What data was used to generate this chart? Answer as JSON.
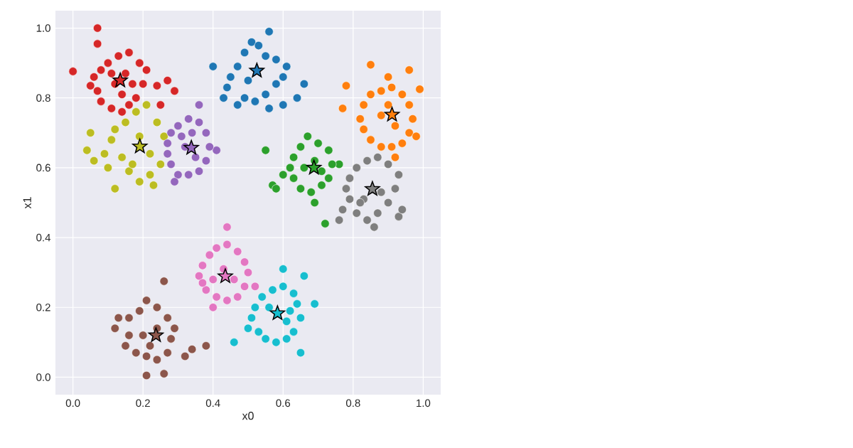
{
  "chart_data": {
    "type": "scatter",
    "xlabel": "x0",
    "ylabel": "x1",
    "xlim": [
      -0.05,
      1.05
    ],
    "ylim": [
      -0.05,
      1.05
    ],
    "xticks": [
      {
        "value": 0,
        "label": "0.0"
      },
      {
        "value": 0.2,
        "label": "0.2"
      },
      {
        "value": 0.4,
        "label": "0.4"
      },
      {
        "value": 0.6,
        "label": "0.6"
      },
      {
        "value": 0.8,
        "label": "0.8"
      },
      {
        "value": 1,
        "label": "1.0"
      }
    ],
    "yticks": [
      {
        "value": 0,
        "label": "0.0"
      },
      {
        "value": 0.2,
        "label": "0.2"
      },
      {
        "value": 0.4,
        "label": "0.4"
      },
      {
        "value": 0.6,
        "label": "0.6"
      },
      {
        "value": 0.8,
        "label": "0.8"
      },
      {
        "value": 1,
        "label": "1.0"
      }
    ],
    "grid": true,
    "marker": "circle",
    "series": [
      {
        "color": "#d62728",
        "x": [
          0.0,
          0.07,
          0.07,
          0.27,
          0.29,
          0.24,
          0.25,
          0.05,
          0.06,
          0.08,
          0.1,
          0.13,
          0.16,
          0.19,
          0.21,
          0.2,
          0.18,
          0.16,
          0.14,
          0.11,
          0.08,
          0.07,
          0.12,
          0.15,
          0.11,
          0.17,
          0.14
        ],
        "values": [
          0.876,
          1.0,
          0.955,
          0.85,
          0.82,
          0.835,
          0.78,
          0.835,
          0.86,
          0.88,
          0.9,
          0.92,
          0.93,
          0.9,
          0.88,
          0.84,
          0.8,
          0.78,
          0.76,
          0.77,
          0.79,
          0.82,
          0.84,
          0.87,
          0.87,
          0.84,
          0.81
        ]
      },
      {
        "color": "#1f77b4",
        "x": [
          0.4,
          0.56,
          0.6,
          0.66,
          0.64,
          0.43,
          0.44,
          0.45,
          0.47,
          0.49,
          0.51,
          0.53,
          0.55,
          0.58,
          0.61,
          0.6,
          0.58,
          0.55,
          0.52,
          0.49,
          0.47,
          0.5,
          0.56
        ],
        "values": [
          0.89,
          0.99,
          0.78,
          0.84,
          0.8,
          0.8,
          0.83,
          0.86,
          0.89,
          0.93,
          0.96,
          0.95,
          0.92,
          0.91,
          0.89,
          0.86,
          0.84,
          0.81,
          0.79,
          0.8,
          0.78,
          0.85,
          0.77
        ]
      },
      {
        "color": "#ff7f0e",
        "x": [
          0.78,
          0.85,
          0.9,
          0.96,
          0.99,
          0.77,
          0.82,
          0.83,
          0.85,
          0.88,
          0.91,
          0.94,
          0.96,
          0.97,
          0.96,
          0.94,
          0.91,
          0.88,
          0.85,
          0.83,
          0.88,
          0.92,
          0.9,
          0.98,
          0.92
        ],
        "values": [
          0.835,
          0.895,
          0.86,
          0.88,
          0.825,
          0.77,
          0.74,
          0.78,
          0.81,
          0.82,
          0.83,
          0.81,
          0.78,
          0.74,
          0.7,
          0.67,
          0.66,
          0.66,
          0.68,
          0.71,
          0.75,
          0.72,
          0.78,
          0.69,
          0.63
        ]
      },
      {
        "color": "#bcbd22",
        "x": [
          0.04,
          0.06,
          0.12,
          0.05,
          0.1,
          0.11,
          0.12,
          0.15,
          0.18,
          0.21,
          0.24,
          0.26,
          0.25,
          0.22,
          0.19,
          0.16,
          0.14,
          0.19,
          0.22,
          0.17,
          0.09,
          0.23
        ],
        "values": [
          0.65,
          0.62,
          0.54,
          0.7,
          0.6,
          0.68,
          0.71,
          0.73,
          0.76,
          0.78,
          0.73,
          0.69,
          0.61,
          0.58,
          0.56,
          0.59,
          0.63,
          0.69,
          0.64,
          0.61,
          0.64,
          0.55
        ]
      },
      {
        "color": "#9467bd",
        "x": [
          0.36,
          0.41,
          0.27,
          0.28,
          0.3,
          0.33,
          0.36,
          0.38,
          0.39,
          0.38,
          0.36,
          0.33,
          0.3,
          0.28,
          0.27,
          0.32,
          0.35,
          0.31,
          0.34,
          0.29
        ],
        "values": [
          0.78,
          0.65,
          0.67,
          0.7,
          0.72,
          0.74,
          0.73,
          0.7,
          0.66,
          0.62,
          0.59,
          0.58,
          0.58,
          0.61,
          0.64,
          0.66,
          0.63,
          0.69,
          0.7,
          0.56
        ]
      },
      {
        "color": "#2ca02c",
        "x": [
          0.55,
          0.72,
          0.76,
          0.57,
          0.58,
          0.62,
          0.63,
          0.65,
          0.67,
          0.7,
          0.73,
          0.74,
          0.73,
          0.71,
          0.68,
          0.65,
          0.63,
          0.69,
          0.66,
          0.71,
          0.6,
          0.69
        ],
        "values": [
          0.65,
          0.44,
          0.61,
          0.55,
          0.54,
          0.6,
          0.63,
          0.66,
          0.69,
          0.67,
          0.65,
          0.61,
          0.57,
          0.55,
          0.53,
          0.54,
          0.57,
          0.62,
          0.6,
          0.59,
          0.58,
          0.5
        ]
      },
      {
        "color": "#7f7f7f",
        "x": [
          0.76,
          0.77,
          0.93,
          0.94,
          0.78,
          0.79,
          0.81,
          0.84,
          0.87,
          0.9,
          0.93,
          0.92,
          0.9,
          0.87,
          0.84,
          0.81,
          0.79,
          0.88,
          0.83,
          0.86,
          0.82
        ],
        "values": [
          0.45,
          0.48,
          0.46,
          0.48,
          0.54,
          0.57,
          0.6,
          0.62,
          0.63,
          0.61,
          0.58,
          0.54,
          0.5,
          0.47,
          0.45,
          0.47,
          0.51,
          0.53,
          0.51,
          0.43,
          0.5
        ]
      },
      {
        "color": "#e377c2",
        "x": [
          0.44,
          0.4,
          0.36,
          0.37,
          0.39,
          0.41,
          0.44,
          0.47,
          0.49,
          0.5,
          0.49,
          0.47,
          0.44,
          0.41,
          0.38,
          0.43,
          0.46,
          0.4,
          0.37,
          0.52
        ],
        "values": [
          0.43,
          0.2,
          0.29,
          0.32,
          0.35,
          0.37,
          0.38,
          0.36,
          0.33,
          0.3,
          0.26,
          0.23,
          0.22,
          0.23,
          0.25,
          0.31,
          0.28,
          0.28,
          0.27,
          0.26
        ]
      },
      {
        "color": "#17becf",
        "x": [
          0.46,
          0.6,
          0.66,
          0.65,
          0.69,
          0.5,
          0.51,
          0.52,
          0.54,
          0.57,
          0.6,
          0.63,
          0.64,
          0.65,
          0.63,
          0.61,
          0.58,
          0.55,
          0.53,
          0.61,
          0.56,
          0.62
        ],
        "values": [
          0.1,
          0.31,
          0.29,
          0.07,
          0.21,
          0.14,
          0.17,
          0.2,
          0.23,
          0.25,
          0.26,
          0.24,
          0.21,
          0.17,
          0.13,
          0.11,
          0.1,
          0.11,
          0.13,
          0.16,
          0.2,
          0.19
        ]
      },
      {
        "color": "#8c564b",
        "x": [
          0.26,
          0.21,
          0.26,
          0.38,
          0.32,
          0.34,
          0.12,
          0.13,
          0.16,
          0.19,
          0.21,
          0.24,
          0.27,
          0.29,
          0.28,
          0.27,
          0.24,
          0.21,
          0.18,
          0.15,
          0.2,
          0.24,
          0.22,
          0.16
        ],
        "values": [
          0.275,
          0.005,
          0.01,
          0.09,
          0.06,
          0.08,
          0.14,
          0.17,
          0.17,
          0.19,
          0.22,
          0.2,
          0.17,
          0.14,
          0.11,
          0.07,
          0.05,
          0.06,
          0.07,
          0.09,
          0.12,
          0.14,
          0.09,
          0.12
        ]
      },
      {
        "marker": "star",
        "colors": [
          "#d62728",
          "#1f77b4",
          "#ff7f0e",
          "#bcbd22",
          "#9467bd",
          "#2ca02c",
          "#7f7f7f",
          "#e377c2",
          "#17becf",
          "#8c564b"
        ],
        "x": [
          0.135,
          0.525,
          0.911,
          0.191,
          0.338,
          0.688,
          0.855,
          0.435,
          0.584,
          0.237
        ],
        "values": [
          0.85,
          0.878,
          0.752,
          0.661,
          0.657,
          0.6,
          0.539,
          0.289,
          0.183,
          0.12
        ]
      }
    ]
  }
}
